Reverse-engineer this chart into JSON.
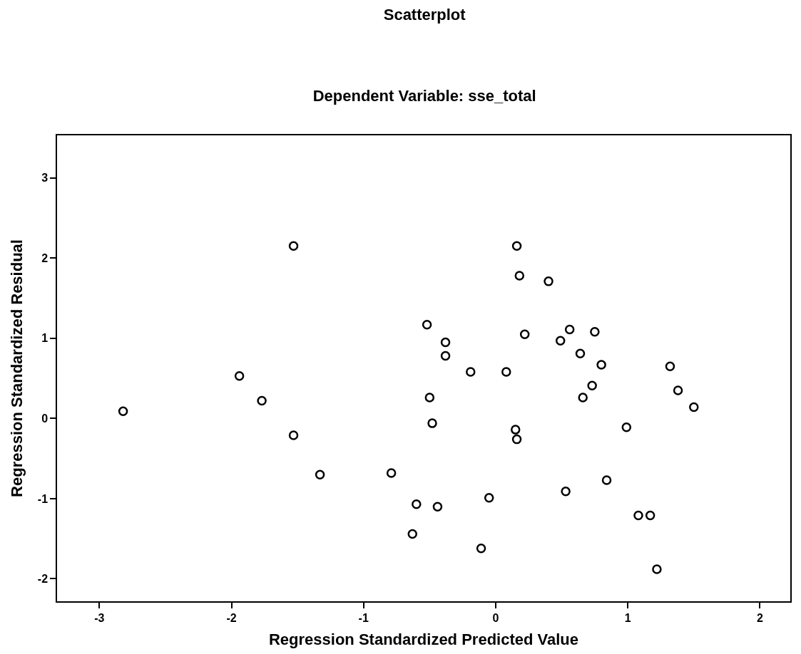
{
  "chart_data": {
    "type": "scatter",
    "title": "Scatterplot",
    "subtitle": "Dependent Variable: sse_total",
    "xlabel": "Regression Standardized Predicted Value",
    "ylabel": "Regression Standardized Residual",
    "x": [
      -2.82,
      -1.94,
      -1.77,
      -1.53,
      -1.53,
      -1.33,
      -0.79,
      -0.63,
      -0.6,
      -0.52,
      -0.5,
      -0.48,
      -0.44,
      -0.38,
      -0.38,
      -0.19,
      -0.11,
      -0.05,
      0.08,
      0.15,
      0.16,
      0.16,
      0.18,
      0.22,
      0.4,
      0.49,
      0.56,
      0.53,
      0.64,
      0.66,
      0.73,
      0.75,
      0.8,
      0.84,
      0.99,
      1.08,
      1.17,
      1.22,
      1.32,
      1.38,
      1.5
    ],
    "series": [
      {
        "color": "#000000",
        "values": [
          0.09,
          0.53,
          0.22,
          2.15,
          -0.21,
          -0.7,
          -0.68,
          -1.44,
          -1.07,
          1.17,
          0.26,
          -0.06,
          -1.1,
          0.95,
          0.78,
          0.58,
          -1.62,
          -0.99,
          0.58,
          -0.14,
          -0.26,
          2.15,
          1.78,
          1.05,
          1.71,
          0.97,
          1.11,
          -0.91,
          0.81,
          0.26,
          0.41,
          1.08,
          0.67,
          -0.77,
          -0.11,
          -1.21,
          -1.21,
          -1.88,
          0.65,
          0.35,
          0.14
        ]
      }
    ],
    "xlim": [
      -3.32,
      2.23
    ],
    "ylim": [
      -2.28,
      3.53
    ],
    "xticks": [
      -3,
      -2,
      -1,
      0,
      1,
      2
    ],
    "yticks": [
      -2,
      -1,
      0,
      1,
      2,
      3
    ],
    "marker": "circle",
    "legend": false
  }
}
